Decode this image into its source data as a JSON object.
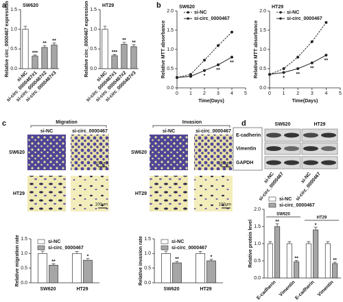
{
  "panel_labels": [
    "a",
    "b",
    "c",
    "d"
  ],
  "panel_c": {
    "headers": [
      "Migration",
      "Invasion"
    ],
    "conditions": [
      "si-NC",
      "si-circ_0000467"
    ],
    "rows": [
      "SW620",
      "HT29"
    ],
    "scale_bar": "100μm"
  },
  "panel_d": {
    "cells": [
      "SW620",
      "HT29"
    ],
    "proteins": [
      "E-cadherin",
      "Vimentin",
      "GAPDH"
    ],
    "conditions": [
      "si-NC",
      "si-circ_0000467"
    ]
  },
  "chart_data": [
    {
      "type": "bar",
      "title": "SW620",
      "ylabel": "Relative circ_0000467 expression",
      "categories": [
        "si-NC",
        "si-circ_0000467#1",
        "si-circ_0000467#2",
        "si-circ_0000467#3"
      ],
      "values": [
        1.0,
        0.32,
        0.54,
        0.6
      ],
      "errors": [
        0.08,
        0.03,
        0.05,
        0.05
      ],
      "colors": [
        "#ffffff",
        "#a6a6a6",
        "#a6a6a6",
        "#a6a6a6"
      ],
      "annotations": [
        null,
        "***",
        "**",
        "**"
      ],
      "ylim": [
        0,
        1.5
      ],
      "yticks": [
        {
          "value": 0,
          "label": "0.0"
        },
        0.5,
        {
          "value": 1,
          "label": "1.0"
        },
        1.5
      ]
    },
    {
      "type": "bar",
      "title": "HT29",
      "ylabel": "Relative circ_0000467 expression",
      "categories": [
        "si-NC",
        "si-circ_0000467#1",
        "si-circ_0000467#2",
        "si-circ_0000467#3"
      ],
      "values": [
        1.0,
        0.33,
        0.62,
        0.56
      ],
      "errors": [
        0.08,
        0.03,
        0.05,
        0.05
      ],
      "colors": [
        "#ffffff",
        "#a6a6a6",
        "#a6a6a6",
        "#a6a6a6"
      ],
      "annotations": [
        null,
        "***",
        "**",
        "**"
      ],
      "ylim": [
        0,
        1.5
      ],
      "yticks": [
        {
          "value": 0,
          "label": "0.0"
        },
        0.5,
        {
          "value": 1,
          "label": "1.0"
        },
        1.5
      ]
    },
    {
      "type": "line",
      "title": "SW620",
      "ylabel": "Relative MTT absorbance",
      "xlabel": "Time(Days)",
      "x": [
        0,
        1,
        2,
        3,
        4
      ],
      "series": [
        {
          "name": "si-NC",
          "color": "#222222",
          "linestyle": "dashed",
          "values": [
            0.27,
            0.35,
            0.72,
            1.1,
            1.45
          ]
        },
        {
          "name": "si-circ_0000467",
          "color": "#222222",
          "linestyle": "solid",
          "values": [
            0.27,
            0.3,
            0.45,
            0.6,
            0.8
          ]
        }
      ],
      "annotations": [
        null,
        null,
        "*",
        "**",
        "**"
      ],
      "xlim": [
        0,
        5
      ],
      "xticks": [
        0,
        1,
        2,
        3,
        4,
        5
      ],
      "ylim": [
        0,
        2
      ],
      "yticks": [
        {
          "value": 0,
          "label": "0.0"
        },
        0.5,
        {
          "value": 1,
          "label": "1.0"
        },
        1.5,
        {
          "value": 2,
          "label": "2.0"
        }
      ]
    },
    {
      "type": "line",
      "title": "HT29",
      "ylabel": "Relative MTT absorbance",
      "xlabel": "Time(Days)",
      "x": [
        0,
        1,
        2,
        3,
        4
      ],
      "series": [
        {
          "name": "si-NC",
          "color": "#222222",
          "linestyle": "dashed",
          "values": [
            0.35,
            0.5,
            0.8,
            1.2,
            1.7
          ]
        },
        {
          "name": "si-circ_0000467",
          "color": "#222222",
          "linestyle": "solid",
          "values": [
            0.35,
            0.4,
            0.5,
            0.65,
            0.85
          ]
        }
      ],
      "annotations": [
        null,
        "*",
        "**",
        "**",
        "**"
      ],
      "xlim": [
        0,
        5
      ],
      "xticks": [
        0,
        1,
        2,
        3,
        4,
        5
      ],
      "ylim": [
        0,
        2
      ],
      "yticks": [
        {
          "value": 0,
          "label": "0.0"
        },
        0.5,
        {
          "value": 1,
          "label": "1.0"
        },
        1.5,
        {
          "value": 2,
          "label": "2.0"
        }
      ]
    },
    {
      "type": "bar",
      "ylabel": "Relative migration rate",
      "categories": [
        "SW620",
        "HT29"
      ],
      "series": [
        {
          "name": "si-NC",
          "color": "#ffffff",
          "values": [
            1.0,
            1.0
          ],
          "errors": [
            0.08,
            0.07
          ]
        },
        {
          "name": "si-circ_0000467",
          "color": "#a6a6a6",
          "values": [
            0.6,
            0.77
          ],
          "errors": [
            0.05,
            0.06
          ]
        }
      ],
      "annotations": [
        "**",
        "*"
      ],
      "ylim": [
        0,
        1.5
      ],
      "yticks": [
        {
          "value": 0,
          "label": "0.0"
        },
        0.5,
        {
          "value": 1,
          "label": "1.0"
        },
        1.5
      ]
    },
    {
      "type": "bar",
      "ylabel": "Relative invasion rate",
      "categories": [
        "SW620",
        "HT29"
      ],
      "series": [
        {
          "name": "si-NC",
          "color": "#ffffff",
          "values": [
            1.0,
            1.0
          ],
          "errors": [
            0.08,
            0.07
          ]
        },
        {
          "name": "si-circ_0000467",
          "color": "#a6a6a6",
          "values": [
            0.68,
            0.75
          ],
          "errors": [
            0.05,
            0.05
          ]
        }
      ],
      "annotations": [
        "**",
        "*"
      ],
      "ylim": [
        0,
        1.5
      ],
      "yticks": [
        {
          "value": 0,
          "label": "0.0"
        },
        0.5,
        {
          "value": 1,
          "label": "1.0"
        },
        1.5
      ]
    },
    {
      "type": "bar",
      "ylabel": "Relative protein level",
      "categories": [
        "E-cadherin",
        "Vimentin",
        "E-cadherin",
        "Vimentin"
      ],
      "groups": [
        "SW620",
        "HT29"
      ],
      "series": [
        {
          "name": "si-NC",
          "color": "#ffffff",
          "values": [
            1.0,
            1.0,
            1.0,
            1.0
          ],
          "errors": [
            0.06,
            0.06,
            0.06,
            0.06
          ]
        },
        {
          "name": "si-circ_0000467",
          "color": "#a6a6a6",
          "values": [
            1.5,
            0.47,
            1.4,
            0.42
          ],
          "errors": [
            0.08,
            0.04,
            0.08,
            0.04
          ]
        }
      ],
      "annotations": [
        "**",
        "**",
        "*",
        "**"
      ],
      "ylim": [
        0,
        2
      ],
      "yticks": [
        {
          "value": 0,
          "label": "0.0"
        },
        0.5,
        {
          "value": 1,
          "label": "1.0"
        },
        1.5,
        {
          "value": 2,
          "label": "2.0"
        }
      ]
    }
  ]
}
